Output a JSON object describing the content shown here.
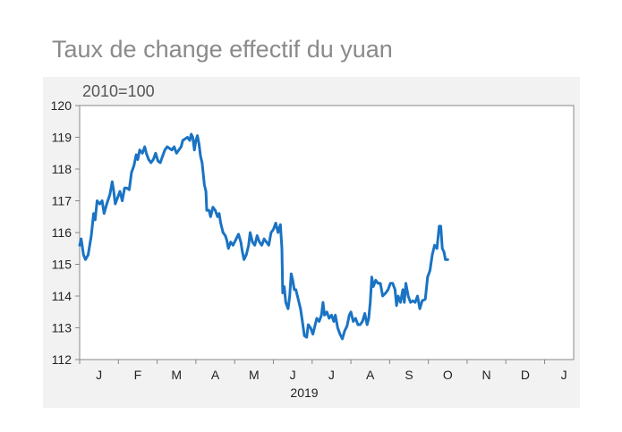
{
  "title": "Taux de change effectif du yuan",
  "colors": {
    "line": "#1a73c3",
    "panel": "#f2f2f2",
    "title": "#8a8a8a",
    "axis": "#888888"
  },
  "chart_data": {
    "type": "line",
    "title": "Taux de change effectif du yuan",
    "unit_label": "2010=100",
    "xlabel": "2019",
    "ylabel": "",
    "ylim": [
      112,
      120
    ],
    "yticks": [
      112,
      113,
      114,
      115,
      116,
      117,
      118,
      119,
      120
    ],
    "xlim": [
      0,
      12.75
    ],
    "month_ticks": [
      "J",
      "F",
      "M",
      "A",
      "M",
      "J",
      "J",
      "A",
      "S",
      "O",
      "N",
      "D",
      "J"
    ],
    "year_label": "2019",
    "grid": false,
    "x_unit": "months since start of 2019",
    "series": [
      {
        "values": [
          [
            0.0,
            115.6
          ],
          [
            0.04,
            115.8
          ],
          [
            0.1,
            115.3
          ],
          [
            0.15,
            115.15
          ],
          [
            0.22,
            115.3
          ],
          [
            0.3,
            115.9
          ],
          [
            0.36,
            116.6
          ],
          [
            0.4,
            116.4
          ],
          [
            0.45,
            117.0
          ],
          [
            0.52,
            116.9
          ],
          [
            0.58,
            117.0
          ],
          [
            0.63,
            116.6
          ],
          [
            0.7,
            116.9
          ],
          [
            0.78,
            117.2
          ],
          [
            0.84,
            117.6
          ],
          [
            0.88,
            117.3
          ],
          [
            0.92,
            116.9
          ],
          [
            0.98,
            117.1
          ],
          [
            1.04,
            117.3
          ],
          [
            1.1,
            117.0
          ],
          [
            1.16,
            117.4
          ],
          [
            1.22,
            117.4
          ],
          [
            1.28,
            117.35
          ],
          [
            1.34,
            117.9
          ],
          [
            1.4,
            118.1
          ],
          [
            1.46,
            118.45
          ],
          [
            1.5,
            118.3
          ],
          [
            1.55,
            118.6
          ],
          [
            1.62,
            118.5
          ],
          [
            1.68,
            118.7
          ],
          [
            1.72,
            118.5
          ],
          [
            1.78,
            118.3
          ],
          [
            1.84,
            118.2
          ],
          [
            1.9,
            118.3
          ],
          [
            1.96,
            118.5
          ],
          [
            2.02,
            118.25
          ],
          [
            2.08,
            118.2
          ],
          [
            2.14,
            118.4
          ],
          [
            2.2,
            118.6
          ],
          [
            2.26,
            118.7
          ],
          [
            2.32,
            118.65
          ],
          [
            2.38,
            118.6
          ],
          [
            2.44,
            118.7
          ],
          [
            2.5,
            118.5
          ],
          [
            2.56,
            118.6
          ],
          [
            2.62,
            118.7
          ],
          [
            2.66,
            118.9
          ],
          [
            2.72,
            118.95
          ],
          [
            2.78,
            119.0
          ],
          [
            2.84,
            118.9
          ],
          [
            2.88,
            119.1
          ],
          [
            2.92,
            119.0
          ],
          [
            2.96,
            118.6
          ],
          [
            3.0,
            118.9
          ],
          [
            3.04,
            119.05
          ],
          [
            3.08,
            118.8
          ],
          [
            3.12,
            118.4
          ],
          [
            3.16,
            118.2
          ],
          [
            3.22,
            117.5
          ],
          [
            3.26,
            117.3
          ],
          [
            3.28,
            116.7
          ],
          [
            3.34,
            116.7
          ],
          [
            3.38,
            116.5
          ],
          [
            3.44,
            116.8
          ],
          [
            3.5,
            116.7
          ],
          [
            3.56,
            116.5
          ],
          [
            3.6,
            116.6
          ],
          [
            3.64,
            116.3
          ],
          [
            3.7,
            116.0
          ],
          [
            3.76,
            115.9
          ],
          [
            3.8,
            115.75
          ],
          [
            3.84,
            115.5
          ],
          [
            3.9,
            115.7
          ],
          [
            3.96,
            115.6
          ],
          [
            4.04,
            115.8
          ],
          [
            4.1,
            115.95
          ],
          [
            4.16,
            115.7
          ],
          [
            4.2,
            115.4
          ],
          [
            4.24,
            115.15
          ],
          [
            4.3,
            115.3
          ],
          [
            4.36,
            115.6
          ],
          [
            4.4,
            116.0
          ],
          [
            4.46,
            115.7
          ],
          [
            4.52,
            115.6
          ],
          [
            4.58,
            115.9
          ],
          [
            4.64,
            115.7
          ],
          [
            4.7,
            115.6
          ],
          [
            4.76,
            115.8
          ],
          [
            4.82,
            115.7
          ],
          [
            4.88,
            115.6
          ],
          [
            4.94,
            116.0
          ],
          [
            5.0,
            116.1
          ],
          [
            5.06,
            116.3
          ],
          [
            5.12,
            116.0
          ],
          [
            5.18,
            116.25
          ],
          [
            5.22,
            115.5
          ],
          [
            5.24,
            114.1
          ],
          [
            5.28,
            114.3
          ],
          [
            5.32,
            113.8
          ],
          [
            5.38,
            113.6
          ],
          [
            5.42,
            114.0
          ],
          [
            5.46,
            114.7
          ],
          [
            5.5,
            114.5
          ],
          [
            5.54,
            114.2
          ],
          [
            5.58,
            114.2
          ],
          [
            5.64,
            113.9
          ],
          [
            5.7,
            113.6
          ],
          [
            5.76,
            113.1
          ],
          [
            5.8,
            112.75
          ],
          [
            5.86,
            112.7
          ],
          [
            5.9,
            113.1
          ],
          [
            5.96,
            113.0
          ],
          [
            6.02,
            112.8
          ],
          [
            6.08,
            113.1
          ],
          [
            6.12,
            113.3
          ],
          [
            6.18,
            113.2
          ],
          [
            6.24,
            113.4
          ],
          [
            6.28,
            113.8
          ],
          [
            6.32,
            113.4
          ],
          [
            6.38,
            113.5
          ],
          [
            6.44,
            113.3
          ],
          [
            6.5,
            113.4
          ],
          [
            6.56,
            113.2
          ],
          [
            6.6,
            113.4
          ],
          [
            6.66,
            113.0
          ],
          [
            6.72,
            112.8
          ],
          [
            6.78,
            112.65
          ],
          [
            6.84,
            112.9
          ],
          [
            6.9,
            113.05
          ],
          [
            6.96,
            113.4
          ],
          [
            7.0,
            113.5
          ],
          [
            7.06,
            113.2
          ],
          [
            7.12,
            113.3
          ],
          [
            7.18,
            113.1
          ],
          [
            7.24,
            113.1
          ],
          [
            7.3,
            113.2
          ],
          [
            7.36,
            113.45
          ],
          [
            7.42,
            113.1
          ],
          [
            7.46,
            113.3
          ],
          [
            7.5,
            113.8
          ],
          [
            7.54,
            114.6
          ],
          [
            7.58,
            114.3
          ],
          [
            7.64,
            114.5
          ],
          [
            7.7,
            114.4
          ],
          [
            7.76,
            114.4
          ],
          [
            7.82,
            114.0
          ],
          [
            7.9,
            114.1
          ],
          [
            7.96,
            114.2
          ],
          [
            8.02,
            114.4
          ],
          [
            8.08,
            114.4
          ],
          [
            8.14,
            114.2
          ],
          [
            8.18,
            113.7
          ],
          [
            8.22,
            114.0
          ],
          [
            8.28,
            113.8
          ],
          [
            8.34,
            114.2
          ],
          [
            8.38,
            113.8
          ],
          [
            8.42,
            114.4
          ],
          [
            8.48,
            114.0
          ],
          [
            8.54,
            113.8
          ],
          [
            8.6,
            113.85
          ],
          [
            8.66,
            113.8
          ],
          [
            8.72,
            114.0
          ],
          [
            8.78,
            113.6
          ],
          [
            8.84,
            113.85
          ],
          [
            8.92,
            113.9
          ],
          [
            8.98,
            114.6
          ],
          [
            9.04,
            114.8
          ],
          [
            9.1,
            115.3
          ],
          [
            9.16,
            115.6
          ],
          [
            9.22,
            115.5
          ],
          [
            9.28,
            116.2
          ],
          [
            9.32,
            116.2
          ],
          [
            9.36,
            115.5
          ],
          [
            9.4,
            115.4
          ],
          [
            9.44,
            115.15
          ],
          [
            9.5,
            115.15
          ]
        ]
      }
    ]
  }
}
